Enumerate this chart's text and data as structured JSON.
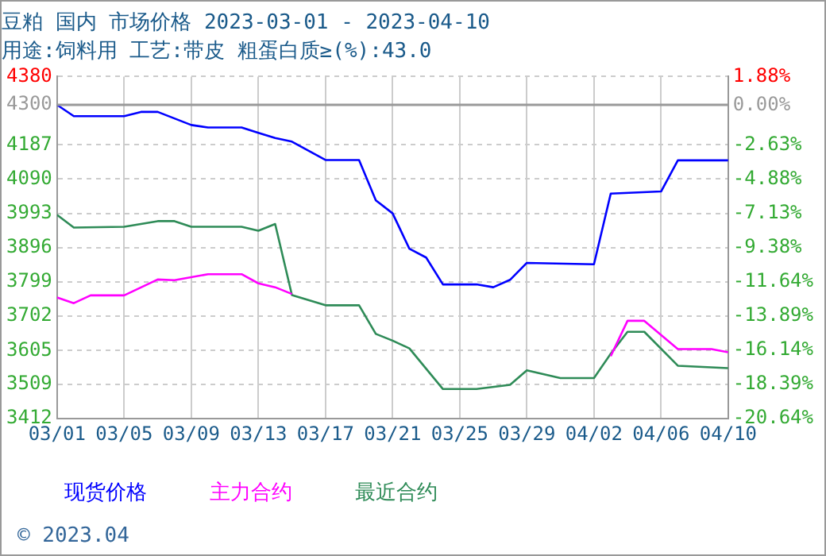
{
  "chart_data": {
    "type": "line",
    "title": "豆粕 国内 市场价格 2023-03-01 - 2023-04-10",
    "subtitle": "用途:饲料用 工艺:带皮 粗蛋白质≥(%):43.0",
    "annotations": [
      "© 2023.04"
    ],
    "series": [
      {
        "name": "现货价格",
        "color": "#0000ff",
        "x": [
          "2023-03-01",
          "2023-03-02",
          "2023-03-05",
          "2023-03-06",
          "2023-03-07",
          "2023-03-09",
          "2023-03-10",
          "2023-03-12",
          "2023-03-13",
          "2023-03-14",
          "2023-03-15",
          "2023-03-17",
          "2023-03-19",
          "2023-03-20",
          "2023-03-21",
          "2023-03-22",
          "2023-03-23",
          "2023-03-24",
          "2023-03-26",
          "2023-03-27",
          "2023-03-28",
          "2023-03-29",
          "2023-04-02",
          "2023-04-03",
          "2023-04-06",
          "2023-04-07",
          "2023-04-10"
        ],
        "values": [
          4300,
          4268,
          4268,
          4280,
          4280,
          4243,
          4236,
          4236,
          4221,
          4206,
          4196,
          4144,
          4144,
          4030,
          3993,
          3893,
          3868,
          3792,
          3792,
          3784,
          3805,
          3853,
          3849,
          4049,
          4055,
          4143,
          4143
        ]
      },
      {
        "name": "主力合约",
        "color": "#ff00ff",
        "x": [
          "2023-03-01",
          "2023-03-02",
          "2023-03-03",
          "2023-03-05",
          "2023-03-07",
          "2023-03-08",
          "2023-03-10",
          "2023-03-12",
          "2023-03-13",
          "2023-03-14",
          "2023-03-15",
          "2023-03-24",
          "2023-04-03",
          "2023-04-04",
          "2023-04-05",
          "2023-04-07",
          "2023-04-09",
          "2023-04-10"
        ],
        "values": [
          3755,
          3739,
          3761,
          3761,
          3806,
          3804,
          3821,
          3821,
          3795,
          3784,
          3765,
          null,
          3589,
          3689,
          3689,
          3609,
          3609,
          3600
        ]
      },
      {
        "name": "最近合约",
        "color": "#2e8b57",
        "x": [
          "2023-03-01",
          "2023-03-02",
          "2023-03-05",
          "2023-03-07",
          "2023-03-08",
          "2023-03-09",
          "2023-03-12",
          "2023-03-13",
          "2023-03-14",
          "2023-03-15",
          "2023-03-17",
          "2023-03-19",
          "2023-03-20",
          "2023-03-21",
          "2023-03-22",
          "2023-03-24",
          "2023-03-26",
          "2023-03-28",
          "2023-03-29",
          "2023-03-31",
          "2023-04-02",
          "2023-04-03",
          "2023-04-04",
          "2023-04-05",
          "2023-04-07",
          "2023-04-10"
        ],
        "values": [
          3989,
          3953,
          3955,
          3971,
          3971,
          3955,
          3955,
          3944,
          3963,
          3762,
          3733,
          3733,
          3652,
          3633,
          3611,
          3496,
          3496,
          3508,
          3549,
          3527,
          3527,
          3596,
          3658,
          3658,
          3562,
          3555
        ]
      }
    ],
    "xlim": [
      "2023-03-01",
      "2023-04-10"
    ],
    "xticks": [
      {
        "value": "2023-03-01",
        "label": "03/01"
      },
      {
        "value": "2023-03-05",
        "label": "03/05"
      },
      {
        "value": "2023-03-09",
        "label": "03/09"
      },
      {
        "value": "2023-03-13",
        "label": "03/13"
      },
      {
        "value": "2023-03-17",
        "label": "03/17"
      },
      {
        "value": "2023-03-21",
        "label": "03/21"
      },
      {
        "value": "2023-03-25",
        "label": "03/25"
      },
      {
        "value": "2023-03-29",
        "label": "03/29"
      },
      {
        "value": "2023-04-02",
        "label": "04/02"
      },
      {
        "value": "2023-04-06",
        "label": "04/06"
      },
      {
        "value": "2023-04-10",
        "label": "04/10"
      }
    ],
    "ylim": [
      3412,
      4380
    ],
    "yticks": [
      3412,
      3509,
      3605,
      3702,
      3799,
      3896,
      3993,
      4090,
      4187,
      4300,
      4380
    ],
    "y2lim": [
      -20.64,
      1.88
    ],
    "y2ticks": [
      {
        "value": -20.64,
        "label": "-20.64%"
      },
      {
        "value": -18.39,
        "label": "-18.39%"
      },
      {
        "value": -16.14,
        "label": "-16.14%"
      },
      {
        "value": -13.89,
        "label": "-13.89%"
      },
      {
        "value": -11.64,
        "label": "-11.64%"
      },
      {
        "value": -9.38,
        "label": "-9.38%"
      },
      {
        "value": -7.13,
        "label": "-7.13%"
      },
      {
        "value": -4.88,
        "label": "-4.88%"
      },
      {
        "value": -2.63,
        "label": "-2.63%"
      },
      {
        "value": 0,
        "label": "0.00%"
      },
      {
        "value": 1.88,
        "label": "1.88%"
      }
    ],
    "ref_lines": [
      {
        "axis": "y",
        "value": 4300,
        "color": "#999999"
      }
    ],
    "grid": true,
    "legend": "bottom",
    "marker": "none",
    "line_style": "solid"
  }
}
